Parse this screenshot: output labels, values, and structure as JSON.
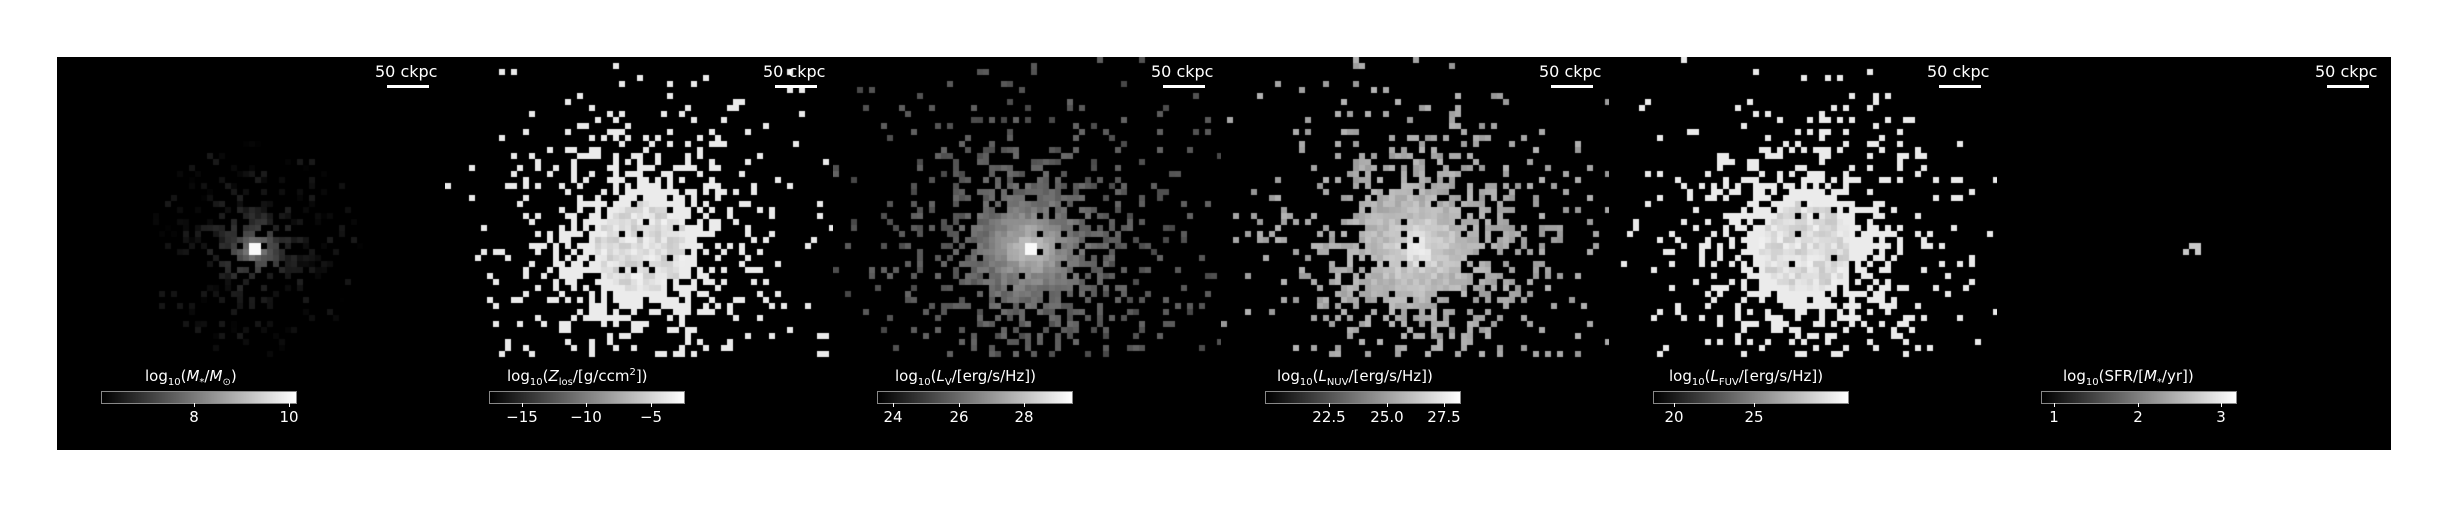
{
  "figure": {
    "panels": [
      {
        "scalebar": "50 ckpc",
        "colorbar": {
          "label_parts": [
            "log",
            "10",
            "(",
            "M",
            "*",
            "/",
            "M",
            "⊙",
            ")"
          ],
          "label_text": "log10(M*/M⊙)",
          "ticks": [
            "8",
            "10"
          ],
          "range": [
            6.5,
            10.6
          ],
          "tick_values": [
            8,
            10
          ]
        },
        "style": "mass"
      },
      {
        "scalebar": "50 ckpc",
        "colorbar": {
          "label_text": "log10(Z_los/[g/ccm^2])",
          "ticks": [
            "−15",
            "−10",
            "−5"
          ],
          "range": [
            -17.5,
            -2.5
          ],
          "tick_values": [
            -15,
            -10,
            -5
          ]
        },
        "style": "sparse"
      },
      {
        "scalebar": "50 ckpc",
        "colorbar": {
          "label_text": "log10(L_V/[erg/s/Hz])",
          "ticks": [
            "24",
            "26",
            "28"
          ],
          "range": [
            23.5,
            29.4
          ],
          "tick_values": [
            24,
            26,
            28
          ]
        },
        "style": "grey"
      },
      {
        "scalebar": "50 ckpc",
        "colorbar": {
          "label_text": "log10(L_NUV/[erg/s/Hz])",
          "ticks": [
            "22.5",
            "25.0",
            "27.5"
          ],
          "range": [
            19.8,
            28.3
          ],
          "tick_values": [
            22.5,
            25.0,
            27.5
          ]
        },
        "style": "sparse-grey"
      },
      {
        "scalebar": "50 ckpc",
        "colorbar": {
          "label_text": "log10(L_FUV/[erg/s/Hz])",
          "ticks": [
            "20",
            "25"
          ],
          "range": [
            16.5,
            28.5
          ],
          "tick_values": [
            20,
            25
          ]
        },
        "style": "sparse"
      },
      {
        "scalebar": "50 ckpc",
        "colorbar": {
          "label_text": "log10(SFR/[M*/yr])",
          "ticks": [
            "1",
            "2",
            "3"
          ],
          "range": [
            0.85,
            3.15
          ],
          "tick_values": [
            1,
            2,
            3
          ]
        },
        "style": "sfr"
      }
    ]
  }
}
